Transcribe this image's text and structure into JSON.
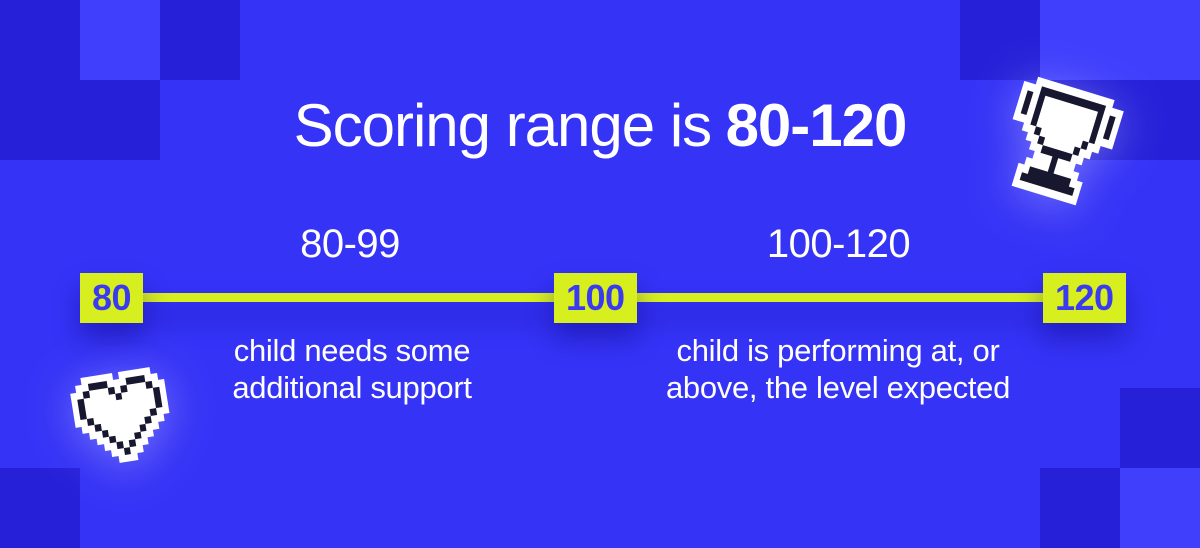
{
  "title": {
    "regular": "Scoring range is",
    "bold": "80-120"
  },
  "scale": {
    "min_label": "80",
    "mid_label": "100",
    "max_label": "120",
    "segments": [
      {
        "range_label": "80-99",
        "lines": [
          "child needs some",
          "additional support"
        ]
      },
      {
        "range_label": "100-120",
        "lines": [
          "child is performing at, or",
          "above, the level expected"
        ]
      }
    ]
  },
  "icons": {
    "top_right": "trophy-icon",
    "bottom_left": "heart-icon"
  },
  "colors": {
    "bg": "#3533f6",
    "square_dark": "#2621d9",
    "square_light": "#403ffc",
    "lime": "#d7ee1f",
    "icon_dark": "#17172f",
    "icon_white": "#ffffff",
    "box_text": "#3a3af0",
    "text": "#ffffff"
  }
}
